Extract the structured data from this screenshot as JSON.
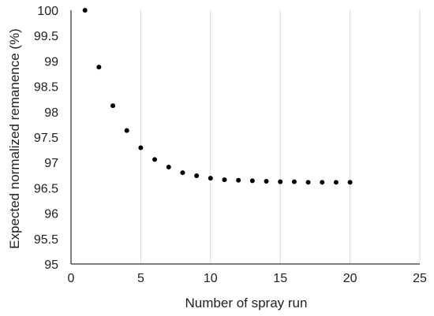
{
  "chart_data": {
    "type": "scatter",
    "title": "",
    "xlabel": "Number of spray run",
    "ylabel": "Expected normalized remanence (%)",
    "xlim": [
      0,
      25
    ],
    "ylim": [
      95,
      100
    ],
    "x_ticks": [
      0,
      5,
      10,
      15,
      20,
      25
    ],
    "y_ticks": [
      95,
      95.5,
      96,
      96.5,
      97,
      97.5,
      98,
      98.5,
      99,
      99.5,
      100
    ],
    "x_tick_labels": [
      "0",
      "5",
      "10",
      "15",
      "20",
      "25"
    ],
    "y_tick_labels": [
      "95",
      "95.5",
      "96",
      "96.5",
      "97",
      "97.5",
      "98",
      "98.5",
      "99",
      "99.5",
      "100"
    ],
    "grid": "vertical",
    "legend": "none",
    "marker_color": "#000000",
    "grid_color": "#d9d9d9",
    "series": [
      {
        "x": [
          1,
          2,
          3,
          4,
          5,
          6,
          7,
          8,
          9,
          10,
          11,
          12,
          13,
          14,
          15,
          16,
          17,
          18,
          19,
          20
        ],
        "y": [
          100,
          98.88,
          98.12,
          97.63,
          97.29,
          97.06,
          96.91,
          96.8,
          96.74,
          96.69,
          96.66,
          96.65,
          96.64,
          96.63,
          96.62,
          96.62,
          96.61,
          96.61,
          96.61,
          96.61
        ]
      }
    ]
  }
}
